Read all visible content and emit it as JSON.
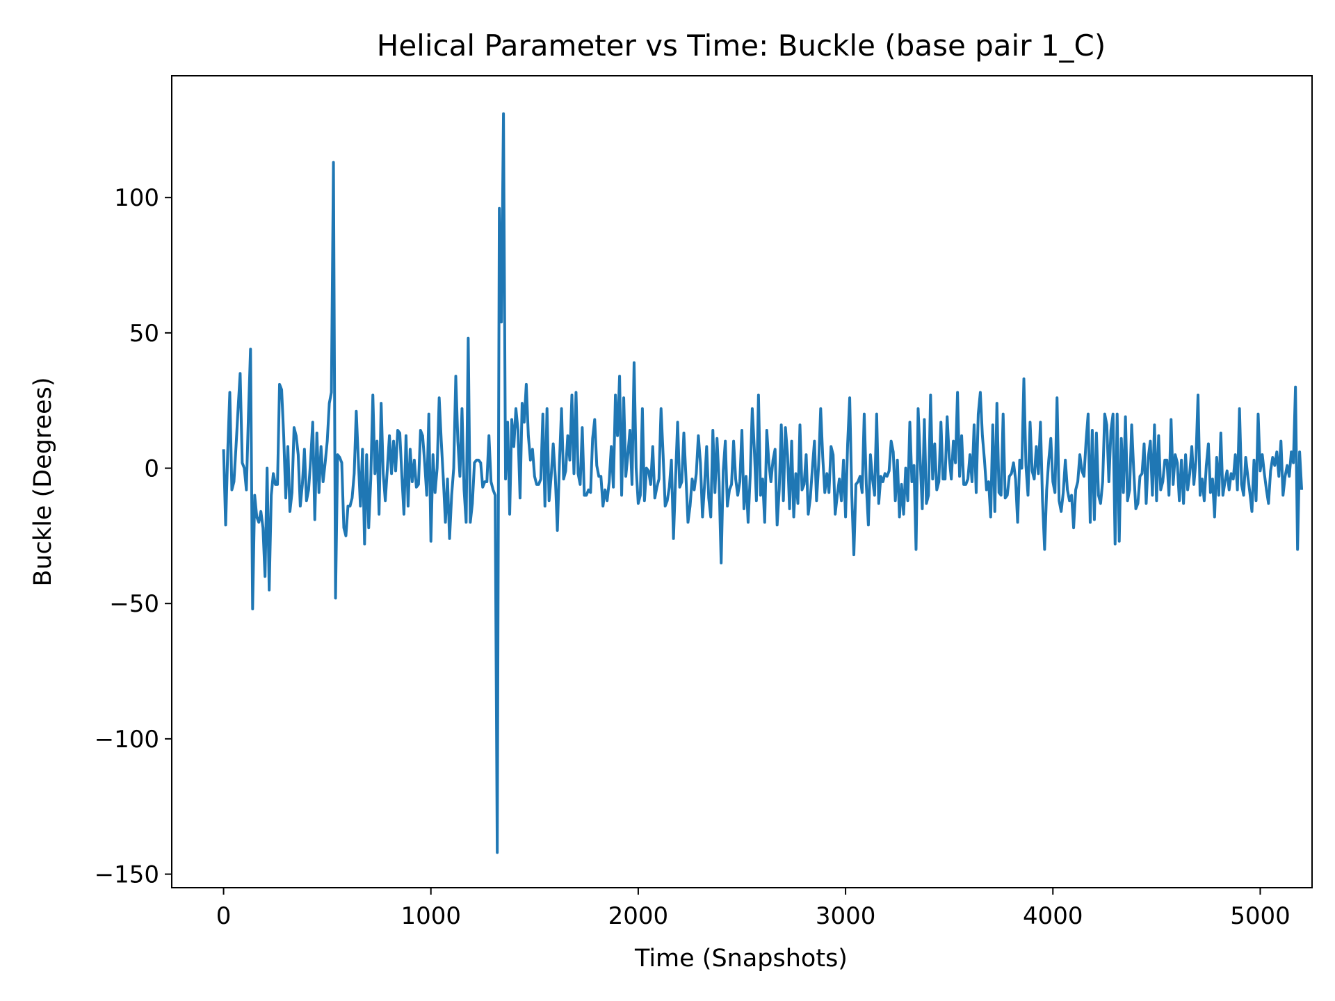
{
  "chart_data": {
    "type": "line",
    "title": "Helical Parameter vs Time: Buckle (base pair  1_C)",
    "xlabel": "Time (Snapshots)",
    "ylabel": "Buckle (Degrees)",
    "xlim": [
      -250,
      5250
    ],
    "ylim": [
      -155,
      145
    ],
    "x_ticks": [
      0,
      1000,
      2000,
      3000,
      4000,
      5000
    ],
    "x_tick_labels": [
      "0",
      "1000",
      "2000",
      "3000",
      "4000",
      "5000"
    ],
    "y_ticks": [
      -150,
      -100,
      -50,
      0,
      50,
      100
    ],
    "y_tick_labels": [
      "−150",
      "−100",
      "−50",
      "0",
      "50",
      "100"
    ],
    "grid": false,
    "colors": {
      "series": "#1f77b4",
      "axes": "#000000",
      "background": "#ffffff"
    },
    "series": [
      {
        "x_start": 0,
        "x_step": 10,
        "values": [
          7,
          -21,
          6,
          28,
          -8,
          -5,
          8,
          22,
          35,
          2,
          0,
          -8,
          20,
          44,
          -52,
          -10,
          -18,
          -20,
          -16,
          -22,
          -40,
          0,
          -45,
          -10,
          -2,
          -6,
          -6,
          31,
          29,
          12,
          -11,
          8,
          -16,
          -9,
          15,
          12,
          5,
          -14,
          -6,
          7,
          -12,
          -8,
          3,
          17,
          -19,
          13,
          -9,
          8,
          -5,
          2,
          10,
          24,
          28,
          113,
          -48,
          5,
          4,
          2,
          -22,
          -25,
          -14,
          -14,
          -11,
          -2,
          21,
          3,
          -14,
          7,
          -28,
          5,
          -22,
          -4,
          27,
          -2,
          10,
          -17,
          24,
          -2,
          -12,
          0,
          12,
          -2,
          10,
          -1,
          14,
          13,
          -3,
          -17,
          12,
          -14,
          7,
          -5,
          3,
          -7,
          -6,
          14,
          12,
          2,
          -10,
          20,
          -27,
          5,
          -9,
          0,
          26,
          10,
          -4,
          -20,
          -4,
          -26,
          -10,
          0,
          34,
          10,
          -3,
          22,
          -8,
          -20,
          48,
          -20,
          -13,
          2,
          3,
          3,
          2,
          -7,
          -5,
          -5,
          12,
          -5,
          -8,
          -10,
          -142,
          96,
          54,
          131,
          -4,
          17,
          -17,
          18,
          8,
          22,
          14,
          -11,
          24,
          17,
          31,
          12,
          3,
          7,
          -3,
          -6,
          -6,
          -4,
          20,
          -14,
          22,
          -12,
          -3,
          9,
          -3,
          -23,
          2,
          22,
          -4,
          -1,
          12,
          3,
          27,
          -2,
          28,
          -2,
          -6,
          15,
          -10,
          -10,
          -8,
          -9,
          11,
          18,
          1,
          -3,
          -3,
          -14,
          -8,
          -12,
          -5,
          8,
          -7,
          27,
          12,
          34,
          -10,
          26,
          -3,
          5,
          14,
          -6,
          39,
          0,
          -13,
          -10,
          22,
          -12,
          0,
          -1,
          -6,
          8,
          -11,
          -7,
          -4,
          22,
          5,
          -14,
          -12,
          -7,
          3,
          -26,
          -4,
          17,
          -7,
          -5,
          13,
          -3,
          -20,
          -14,
          -4,
          -8,
          -2,
          12,
          2,
          -18,
          -6,
          8,
          -11,
          -18,
          14,
          -9,
          11,
          -5,
          -35,
          -1,
          10,
          -14,
          -8,
          -6,
          10,
          -4,
          -10,
          -5,
          14,
          -15,
          -3,
          -20,
          -3,
          22,
          7,
          -12,
          27,
          -10,
          -4,
          -20,
          14,
          2,
          -5,
          3,
          7,
          -21,
          -8,
          16,
          -12,
          15,
          5,
          -15,
          10,
          -18,
          -2,
          -13,
          16,
          -8,
          -6,
          5,
          -17,
          -11,
          0,
          10,
          -12,
          1,
          22,
          4,
          -9,
          -2,
          -9,
          8,
          5,
          -17,
          -10,
          -4,
          -12,
          3,
          -18,
          9,
          26,
          -10,
          -32,
          -6,
          -5,
          -3,
          -9,
          20,
          -6,
          -21,
          5,
          -4,
          -10,
          20,
          -13,
          -3,
          -5,
          -2,
          -3,
          -1,
          10,
          6,
          -12,
          3,
          -18,
          -6,
          -17,
          0,
          -12,
          17,
          -5,
          1,
          -30,
          22,
          3,
          -15,
          18,
          -13,
          -10,
          27,
          -4,
          9,
          -8,
          -5,
          17,
          -4,
          -4,
          19,
          4,
          -4,
          10,
          2,
          28,
          -3,
          12,
          -6,
          -6,
          -4,
          5,
          -5,
          16,
          -9,
          20,
          28,
          12,
          3,
          -8,
          -5,
          -18,
          16,
          -16,
          24,
          -9,
          -10,
          20,
          -11,
          -10,
          -3,
          -2,
          2,
          -4,
          -20,
          3,
          0,
          33,
          1,
          -10,
          17,
          -1,
          -4,
          8,
          -2,
          17,
          -12,
          -30,
          -8,
          3,
          11,
          -5,
          -9,
          26,
          -12,
          -16,
          -9,
          3,
          -8,
          -12,
          -10,
          -22,
          -8,
          -5,
          5,
          -1,
          -3,
          10,
          20,
          -20,
          14,
          -19,
          13,
          -10,
          -13,
          -5,
          20,
          16,
          -5,
          14,
          20,
          -28,
          20,
          -27,
          11,
          -9,
          19,
          -12,
          -8,
          16,
          -1,
          -15,
          -13,
          -3,
          -2,
          9,
          -13,
          4,
          10,
          -10,
          16,
          -12,
          12,
          -8,
          -5,
          3,
          3,
          -10,
          18,
          -6,
          5,
          2,
          -12,
          3,
          -13,
          5,
          -8,
          -2,
          8,
          -6,
          3,
          27,
          -10,
          -4,
          -12,
          1,
          9,
          -9,
          -4,
          -18,
          4,
          -10,
          13,
          -10,
          -5,
          -1,
          -8,
          -2,
          -4,
          5,
          -8,
          22,
          -6,
          -10,
          4,
          -3,
          -9,
          -16,
          3,
          -12,
          20,
          -1,
          5,
          -2,
          -8,
          -13,
          -1,
          4,
          1,
          6,
          -3,
          10,
          -10,
          -3,
          1,
          -3,
          6,
          2,
          30,
          -30,
          6,
          -8
        ]
      }
    ]
  }
}
